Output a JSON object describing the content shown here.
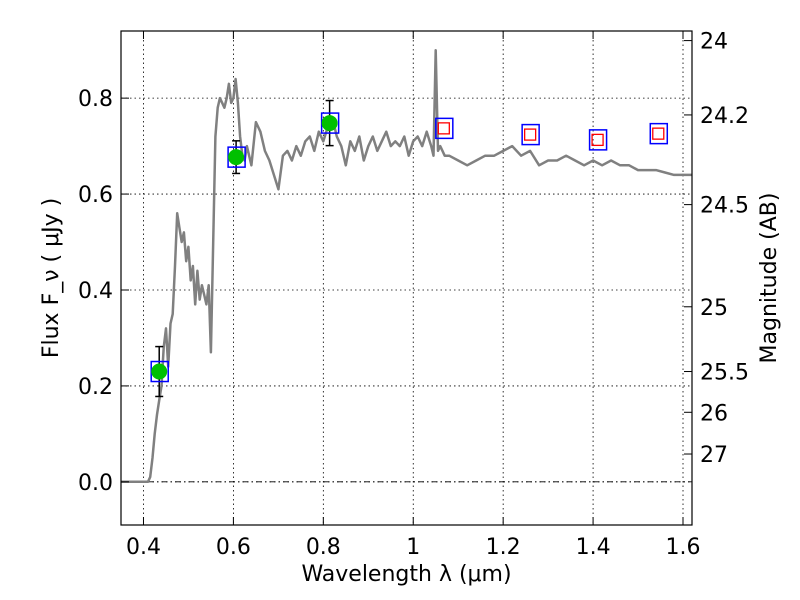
{
  "chart_data": {
    "type": "line",
    "xlabel": "Wavelength  λ (μm)",
    "ylabel": "Flux  F_ν  ( μJy )",
    "ylabel_right": "Magnitude (AB)",
    "xlim": [
      0.35,
      1.62
    ],
    "ylim": [
      -0.09,
      0.94
    ],
    "grid": true,
    "xticks": [
      {
        "value": 0.4,
        "label": "0.4"
      },
      {
        "value": 0.6,
        "label": "0.6"
      },
      {
        "value": 0.8,
        "label": "0.8"
      },
      {
        "value": 1.0,
        "label": "1"
      },
      {
        "value": 1.2,
        "label": "1.2"
      },
      {
        "value": 1.4,
        "label": "1.4"
      },
      {
        "value": 1.6,
        "label": "1.6"
      }
    ],
    "yticks": [
      {
        "value": 0.0,
        "label": "0.0"
      },
      {
        "value": 0.2,
        "label": "0.2"
      },
      {
        "value": 0.4,
        "label": "0.4"
      },
      {
        "value": 0.6,
        "label": "0.6"
      },
      {
        "value": 0.8,
        "label": "0.8"
      }
    ],
    "magnitude_ticks": [
      {
        "flux": 0.92,
        "label": "24"
      },
      {
        "flux": 0.765,
        "label": "24.2"
      },
      {
        "flux": 0.578,
        "label": "24.5"
      },
      {
        "flux": 0.365,
        "label": "25"
      },
      {
        "flux": 0.23,
        "label": "25.5"
      },
      {
        "flux": 0.145,
        "label": "26"
      },
      {
        "flux": 0.058,
        "label": "27"
      }
    ],
    "series": [
      {
        "kind": "line",
        "color": "#808080",
        "x": [
          0.35,
          0.405,
          0.41,
          0.415,
          0.42,
          0.425,
          0.43,
          0.435,
          0.44,
          0.445,
          0.45,
          0.455,
          0.46,
          0.465,
          0.47,
          0.475,
          0.48,
          0.485,
          0.49,
          0.495,
          0.5,
          0.505,
          0.51,
          0.515,
          0.52,
          0.525,
          0.53,
          0.535,
          0.54,
          0.545,
          0.55,
          0.555,
          0.56,
          0.565,
          0.57,
          0.575,
          0.58,
          0.585,
          0.59,
          0.595,
          0.6,
          0.605,
          0.61,
          0.615,
          0.62,
          0.625,
          0.63,
          0.64,
          0.65,
          0.66,
          0.67,
          0.68,
          0.69,
          0.7,
          0.71,
          0.72,
          0.73,
          0.74,
          0.75,
          0.76,
          0.77,
          0.78,
          0.79,
          0.8,
          0.81,
          0.82,
          0.83,
          0.84,
          0.85,
          0.86,
          0.87,
          0.88,
          0.89,
          0.9,
          0.91,
          0.92,
          0.93,
          0.94,
          0.95,
          0.96,
          0.97,
          0.98,
          0.99,
          1.0,
          1.01,
          1.02,
          1.03,
          1.04,
          1.045,
          1.05,
          1.055,
          1.06,
          1.065,
          1.07,
          1.08,
          1.1,
          1.12,
          1.14,
          1.16,
          1.18,
          1.2,
          1.22,
          1.24,
          1.26,
          1.28,
          1.3,
          1.32,
          1.34,
          1.36,
          1.38,
          1.4,
          1.42,
          1.44,
          1.46,
          1.48,
          1.5,
          1.52,
          1.54,
          1.56,
          1.58,
          1.6,
          1.62
        ],
        "y": [
          0.0,
          0.0,
          0.0,
          0.01,
          0.05,
          0.1,
          0.14,
          0.17,
          0.2,
          0.28,
          0.32,
          0.24,
          0.33,
          0.35,
          0.45,
          0.56,
          0.53,
          0.5,
          0.52,
          0.46,
          0.49,
          0.42,
          0.45,
          0.37,
          0.44,
          0.38,
          0.41,
          0.39,
          0.37,
          0.41,
          0.27,
          0.5,
          0.72,
          0.78,
          0.8,
          0.79,
          0.78,
          0.8,
          0.83,
          0.79,
          0.8,
          0.84,
          0.79,
          0.72,
          0.68,
          0.67,
          0.7,
          0.66,
          0.75,
          0.73,
          0.69,
          0.67,
          0.64,
          0.61,
          0.68,
          0.69,
          0.67,
          0.7,
          0.68,
          0.71,
          0.72,
          0.69,
          0.73,
          0.71,
          0.74,
          0.76,
          0.72,
          0.7,
          0.66,
          0.71,
          0.69,
          0.72,
          0.67,
          0.7,
          0.72,
          0.69,
          0.71,
          0.73,
          0.7,
          0.71,
          0.7,
          0.72,
          0.68,
          0.71,
          0.72,
          0.7,
          0.73,
          0.7,
          0.68,
          0.9,
          0.69,
          0.7,
          0.69,
          0.68,
          0.68,
          0.67,
          0.66,
          0.67,
          0.68,
          0.68,
          0.69,
          0.7,
          0.68,
          0.69,
          0.66,
          0.67,
          0.67,
          0.68,
          0.67,
          0.66,
          0.67,
          0.66,
          0.67,
          0.66,
          0.66,
          0.65,
          0.65,
          0.65,
          0.645,
          0.64,
          0.64,
          0.64
        ]
      },
      {
        "kind": "points",
        "name_visible": false,
        "marker": "filled-circle",
        "color": "#00c000",
        "box_color": "#0000ff",
        "points": [
          {
            "x": 0.435,
            "y": 0.23,
            "yerr": 0.052
          },
          {
            "x": 0.606,
            "y": 0.677,
            "yerr": 0.034
          },
          {
            "x": 0.814,
            "y": 0.748,
            "yerr": 0.047
          }
        ]
      },
      {
        "kind": "points",
        "marker": "open-square",
        "color": "#ff0000",
        "box_color": "#0000ff",
        "points": [
          {
            "x": 1.068,
            "y": 0.737
          },
          {
            "x": 1.26,
            "y": 0.724
          },
          {
            "x": 1.41,
            "y": 0.713
          },
          {
            "x": 1.545,
            "y": 0.726
          }
        ]
      }
    ],
    "zero_line": {
      "value": 0.0,
      "style": "dash-dot"
    }
  }
}
